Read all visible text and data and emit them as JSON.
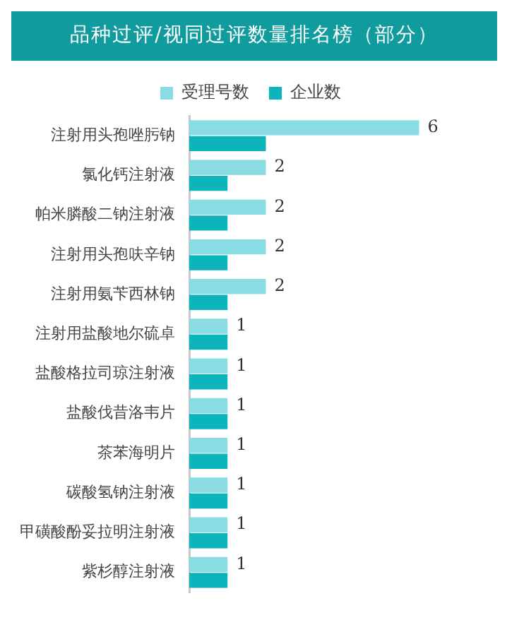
{
  "chart_data": {
    "type": "bar",
    "orientation": "horizontal",
    "title": "品种过评/视同过评数量排名榜（部分）",
    "categories": [
      "注射用头孢唑肟钠",
      "氯化钙注射液",
      "帕米膦酸二钠注射液",
      "注射用头孢呋辛钠",
      "注射用氨苄西林钠",
      "注射用盐酸地尔硫卓",
      "盐酸格拉司琼注射液",
      "盐酸伐昔洛韦片",
      "茶苯海明片",
      "碳酸氢钠注射液",
      "甲磺酸酚妥拉明注射液",
      "紫杉醇注射液"
    ],
    "series": [
      {
        "name": "受理号数",
        "color": "#88dce2",
        "values": [
          6,
          2,
          2,
          2,
          2,
          1,
          1,
          1,
          1,
          1,
          1,
          1
        ],
        "value_labels": [
          "6",
          "2",
          "2",
          "2",
          "2",
          "1",
          "1",
          "1",
          "1",
          "1",
          "1",
          "1"
        ]
      },
      {
        "name": "企业数",
        "color": "#0bb5bb",
        "values": [
          2,
          1,
          1,
          1,
          1,
          1,
          1,
          1,
          1,
          1,
          1,
          1
        ]
      }
    ],
    "legend": "top",
    "grid": false
  }
}
